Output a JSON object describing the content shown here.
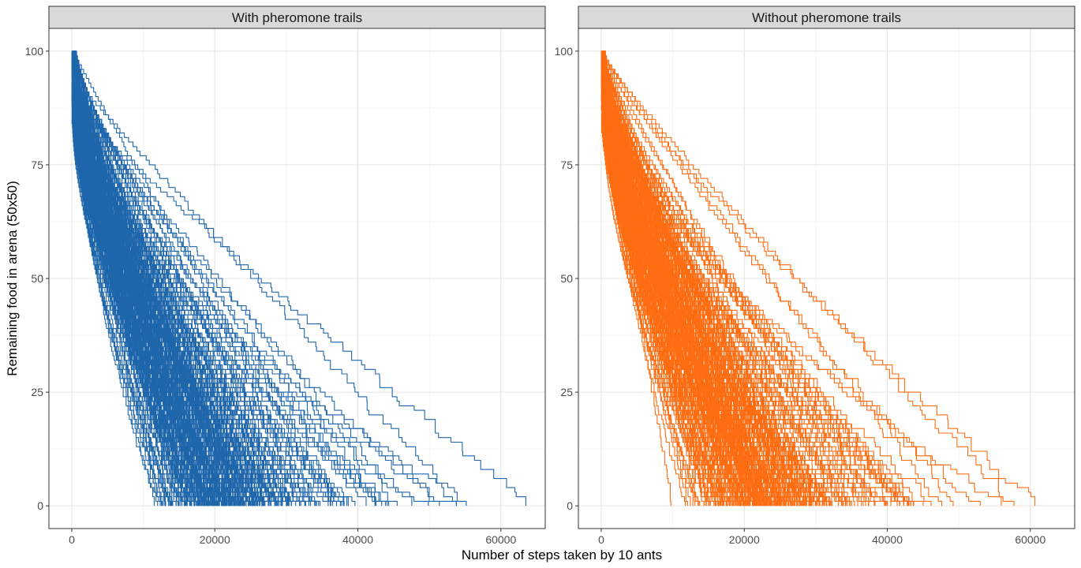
{
  "chart_data": {
    "type": "line",
    "xlabel": "Number of steps taken by 10 ants",
    "ylabel": "Remaining food in arena (50x50)",
    "xlim": [
      -3200,
      66200
    ],
    "ylim": [
      -5,
      105
    ],
    "x_ticks": [
      0,
      20000,
      40000,
      60000
    ],
    "y_ticks": [
      0,
      25,
      50,
      75,
      100
    ],
    "x_tick_labels": [
      "0",
      "20000",
      "40000",
      "60000"
    ],
    "y_tick_labels": [
      "0",
      "25",
      "50",
      "75",
      "100"
    ],
    "grid": true,
    "theme": "bw",
    "panels": [
      {
        "strip": "With pheromone trails",
        "color": "#1f66ab",
        "run_count": 300,
        "start_food": 100,
        "end_food": 0,
        "min_finish_step": 7000,
        "median_finish_step": 22000,
        "max_finish_step": 63200,
        "slowest_finish_steps": [
          63200,
          55500,
          54000,
          52500,
          51000,
          49000,
          47000,
          45500,
          44000
        ]
      },
      {
        "strip": "Without pheromone trails",
        "color": "#fd6d12",
        "run_count": 300,
        "start_food": 100,
        "end_food": 0,
        "min_finish_step": 9000,
        "median_finish_step": 24000,
        "max_finish_step": 60500,
        "slowest_finish_steps": [
          60500,
          57500,
          55500,
          53000,
          50000,
          47500,
          46500,
          45000,
          43500
        ]
      }
    ]
  }
}
